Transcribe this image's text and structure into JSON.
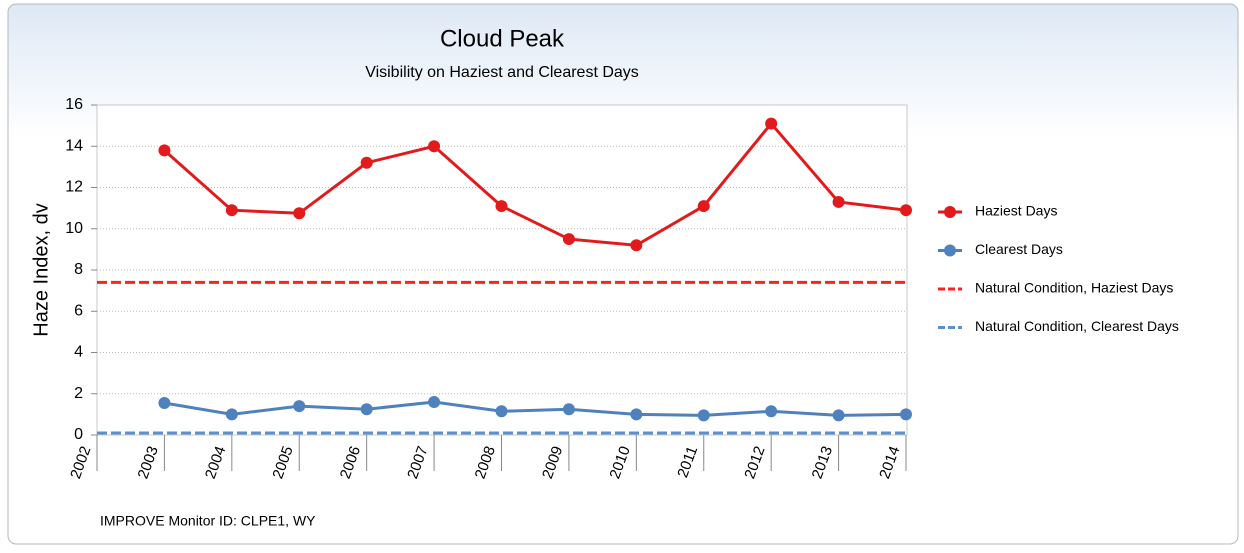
{
  "chart_data": {
    "type": "line",
    "title": "Cloud Peak",
    "subtitle": "Visibility on Haziest and Clearest Days",
    "y_label": "Haze Index, dv",
    "footnote": "IMPROVE Monitor ID: CLPE1, WY",
    "x": [
      2003,
      2004,
      2005,
      2006,
      2007,
      2008,
      2009,
      2010,
      2011,
      2012,
      2013,
      2014
    ],
    "xlim": [
      2002,
      2014
    ],
    "xticks": [
      2002,
      2003,
      2004,
      2005,
      2006,
      2007,
      2008,
      2009,
      2010,
      2011,
      2012,
      2013,
      2014
    ],
    "ylim": [
      0,
      16
    ],
    "yticks": [
      0,
      2,
      4,
      6,
      8,
      10,
      12,
      14,
      16
    ],
    "grid": true,
    "legend": "right",
    "series": [
      {
        "name": "Haziest Days",
        "color": "#e31a1c",
        "values": [
          13.8,
          10.9,
          10.75,
          13.2,
          14.0,
          11.1,
          9.5,
          9.2,
          11.1,
          15.1,
          11.3,
          10.9
        ]
      },
      {
        "name": "Clearest Days",
        "color": "#4f81bd",
        "values": [
          1.55,
          1.0,
          1.4,
          1.25,
          1.6,
          1.15,
          1.25,
          1.0,
          0.95,
          1.15,
          0.95,
          1.0
        ]
      },
      {
        "name": "Natural Condition, Haziest Days",
        "color": "#ff2020",
        "dashed": true,
        "x": [
          2002,
          2014
        ],
        "values": [
          7.4,
          7.4
        ]
      },
      {
        "name": "Natural Condition, Clearest Days",
        "color": "#5b8fd0",
        "dashed": true,
        "x": [
          2002,
          2014
        ],
        "values": [
          0.1,
          0.1
        ]
      }
    ]
  }
}
